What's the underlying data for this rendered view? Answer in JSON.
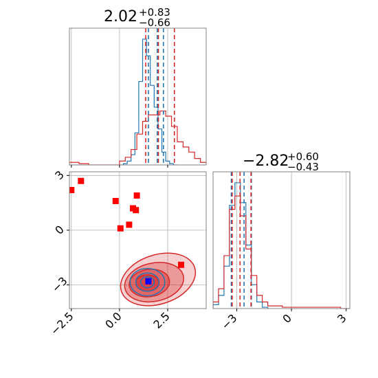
{
  "colors": {
    "blue": "#1f77b4",
    "red": "#d62728",
    "marker_red": "#ff0000",
    "marker_blue": "#0000ff",
    "grid": "#b0b0b0",
    "frame": "#808080"
  },
  "titles": {
    "p1": {
      "value": "2.02",
      "plus": "+0.83",
      "minus": "−0.66"
    },
    "p2": {
      "value": "−2.82",
      "plus": "+0.60",
      "minus": "−0.43"
    }
  },
  "chart_data": [
    {
      "type": "histogram",
      "panel": "marginal-x",
      "xlim": [
        -2.6,
        4.5
      ],
      "grid": true,
      "series": [
        {
          "color": "#1f77b4",
          "bin_edges": [
            0.0,
            0.2,
            0.4,
            0.6,
            0.8,
            1.0,
            1.2,
            1.4,
            1.6,
            1.8,
            2.0,
            2.2,
            2.4,
            2.6,
            2.8,
            3.0
          ],
          "density": [
            0.0,
            0.01,
            0.03,
            0.08,
            0.25,
            0.65,
            0.98,
            0.85,
            0.62,
            0.45,
            0.28,
            0.1,
            0.03,
            0.01,
            0.0
          ]
        },
        {
          "color": "#d62728",
          "bin_edges": [
            -2.6,
            -2.1,
            -1.6,
            -1.1,
            -0.6,
            0.0,
            0.3,
            0.6,
            0.9,
            1.2,
            1.5,
            1.8,
            2.1,
            2.4,
            2.7,
            3.0,
            3.3,
            3.6,
            3.9,
            4.2,
            4.5
          ],
          "density": [
            0.02,
            0.01,
            0.0,
            0.0,
            0.0,
            0.03,
            0.06,
            0.12,
            0.24,
            0.34,
            0.39,
            0.39,
            0.42,
            0.38,
            0.3,
            0.18,
            0.14,
            0.1,
            0.05,
            0.02
          ]
        }
      ],
      "quantile_lines": {
        "blue": [
          1.5,
          1.96,
          2.28
        ],
        "red": [
          1.36,
          2.02,
          2.85
        ]
      }
    },
    {
      "type": "histogram",
      "panel": "marginal-y",
      "xlim": [
        -4.3,
        3.2
      ],
      "xticks": [
        -3,
        0,
        3
      ],
      "xtick_labels": [
        "−3",
        "0",
        "3"
      ],
      "grid": true,
      "series": [
        {
          "color": "#1f77b4",
          "bin_edges": [
            -4.3,
            -4.0,
            -3.7,
            -3.4,
            -3.1,
            -2.8,
            -2.5,
            -2.2,
            -1.9,
            -1.6,
            -1.3
          ],
          "density": [
            0.03,
            0.1,
            0.32,
            0.78,
            0.95,
            0.8,
            0.48,
            0.18,
            0.05,
            0.01
          ]
        },
        {
          "color": "#d62728",
          "bin_edges": [
            -4.3,
            -4.0,
            -3.7,
            -3.4,
            -3.1,
            -2.8,
            -2.5,
            -2.2,
            -1.9,
            -1.6,
            -1.3,
            -0.5,
            0.3,
            1.1,
            1.9,
            2.7,
            3.2
          ],
          "density": [
            0.05,
            0.15,
            0.4,
            0.75,
            0.85,
            0.7,
            0.45,
            0.25,
            0.1,
            0.05,
            0.02,
            0.01,
            0.01,
            0.01,
            0.01,
            0.0
          ]
        }
      ],
      "quantile_lines": {
        "blue": [
          -3.3,
          -2.6,
          -2.2
        ],
        "red": [
          -3.25,
          -2.82,
          -2.22
        ]
      }
    },
    {
      "type": "scatter",
      "panel": "joint",
      "xlim": [
        -2.6,
        4.5
      ],
      "ylim": [
        -4.3,
        3.2
      ],
      "xticks": [
        -2.5,
        0.0,
        2.5
      ],
      "xtick_labels": [
        "−2.5",
        "0.0",
        "2.5"
      ],
      "yticks": [
        3,
        0,
        -3
      ],
      "ytick_labels": [
        "3",
        "0",
        "−3"
      ],
      "grid": true,
      "red_markers": [
        [
          -2.5,
          2.2
        ],
        [
          -2.0,
          2.7
        ],
        [
          -0.2,
          1.6
        ],
        [
          0.7,
          1.2
        ],
        [
          0.85,
          1.1
        ],
        [
          0.9,
          1.9
        ],
        [
          0.5,
          0.3
        ],
        [
          0.05,
          0.1
        ],
        [
          3.2,
          -1.9
        ]
      ],
      "blue_marker": [
        1.5,
        -2.8
      ],
      "red_contours": [
        {
          "cx": 2.0,
          "cy": -2.7,
          "rx": 2.0,
          "ry": 1.35,
          "rot": -18,
          "opacity": 0.35
        },
        {
          "cx": 1.8,
          "cy": -2.85,
          "rx": 1.55,
          "ry": 1.05,
          "rot": -12,
          "opacity": 0.55
        },
        {
          "cx": 1.55,
          "cy": -2.9,
          "rx": 1.05,
          "ry": 0.75,
          "rot": -8,
          "opacity": 0.75
        },
        {
          "cx": 1.45,
          "cy": -2.9,
          "rx": 0.6,
          "ry": 0.45,
          "rot": 0,
          "opacity": 0.9
        }
      ],
      "blue_contours": [
        {
          "cx": 1.45,
          "cy": -2.85,
          "rx": 0.9,
          "ry": 0.75,
          "rot": 0
        },
        {
          "cx": 1.45,
          "cy": -2.85,
          "rx": 0.6,
          "ry": 0.5,
          "rot": 0
        },
        {
          "cx": 1.45,
          "cy": -2.85,
          "rx": 0.35,
          "ry": 0.3,
          "rot": 0
        }
      ]
    }
  ]
}
